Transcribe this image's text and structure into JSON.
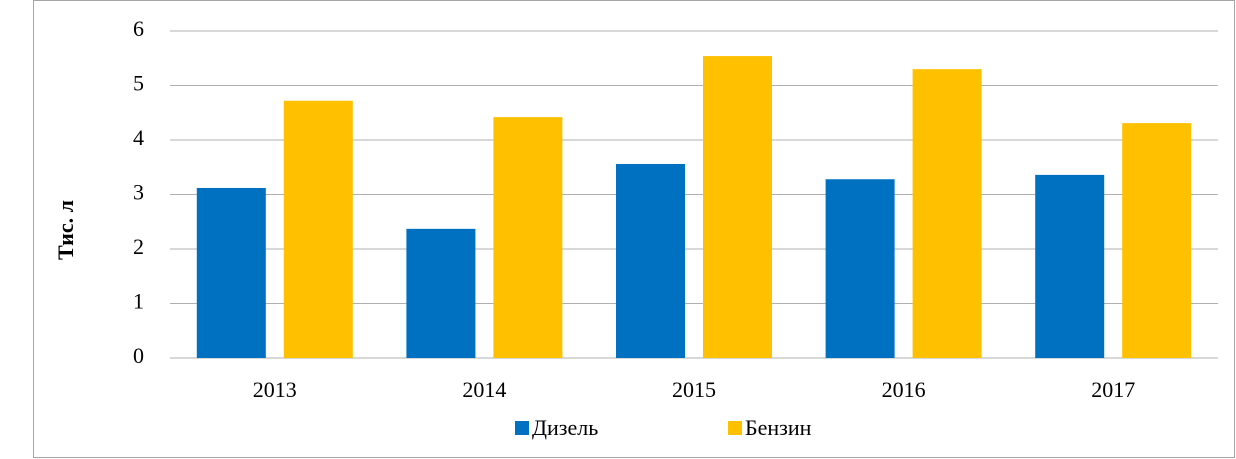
{
  "chart_data": {
    "type": "bar",
    "y_label": "Тис. л",
    "categories": [
      "2013",
      "2014",
      "2015",
      "2016",
      "2017"
    ],
    "series": [
      {
        "name": "Дизель",
        "color": "#0070c0",
        "values": [
          3.12,
          2.37,
          3.56,
          3.28,
          3.36
        ]
      },
      {
        "name": "Бензин",
        "color": "#ffc000",
        "values": [
          4.72,
          4.42,
          5.54,
          5.3,
          4.31
        ]
      }
    ],
    "ylim": [
      0,
      6
    ],
    "yticks": [
      0,
      1,
      2,
      3,
      4,
      5,
      6
    ],
    "grid": true,
    "legend": "bottom"
  }
}
